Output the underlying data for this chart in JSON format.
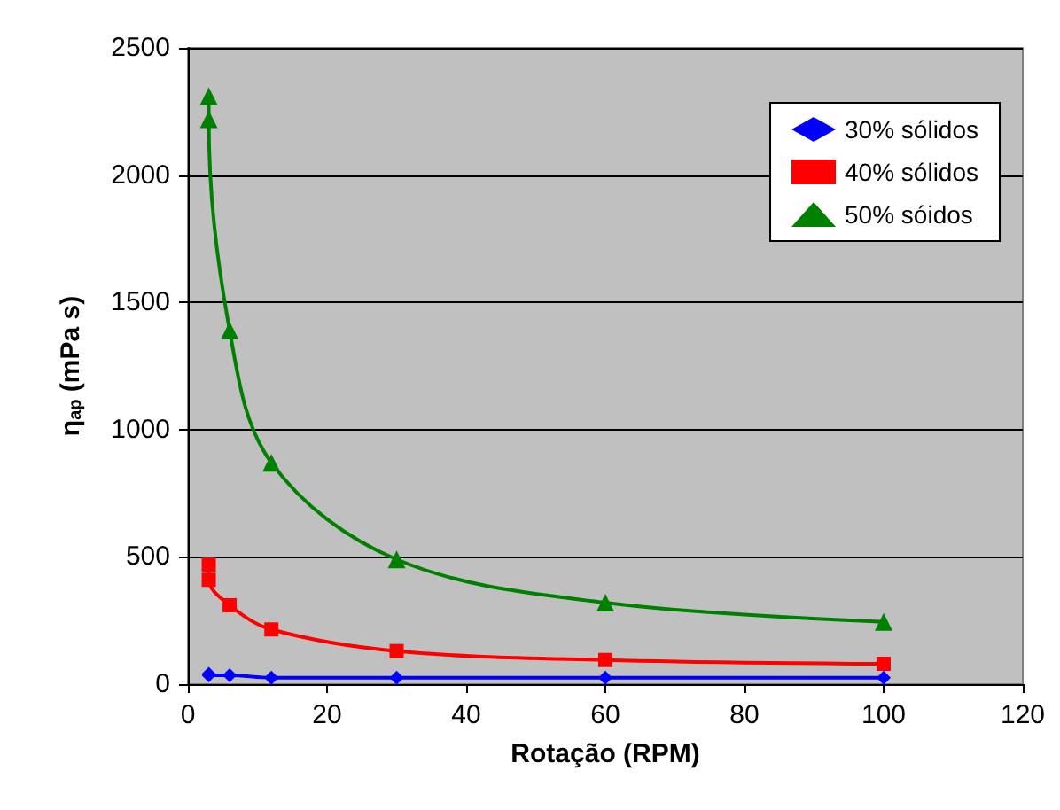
{
  "chart_data": {
    "type": "line",
    "xlabel": "Rotação (RPM)",
    "ylabel": "η$_{ap}$ (mPa s)",
    "x": [
      3,
      3,
      6,
      12,
      30,
      60,
      100
    ],
    "series": [
      {
        "name": "30% sólidos",
        "color": "#0000ff",
        "marker": "diamond",
        "values": [
          40,
          35,
          35,
          25,
          25,
          25,
          25
        ]
      },
      {
        "name": "40% sólidos",
        "color": "#ff0000",
        "marker": "square",
        "values": [
          470,
          410,
          310,
          215,
          130,
          95,
          80
        ]
      },
      {
        "name": "50% sóidos",
        "color": "#008000",
        "marker": "triangle",
        "values": [
          2310,
          2220,
          1390,
          870,
          490,
          320,
          245
        ]
      }
    ],
    "xlim": [
      0,
      120
    ],
    "xticks": [
      0,
      20,
      40,
      60,
      80,
      100,
      120
    ],
    "ylim": [
      0,
      2500
    ],
    "yticks": [
      0,
      500,
      1000,
      1500,
      2000,
      2500
    ],
    "grid": "y",
    "legend": "top right",
    "line_style": "solid"
  }
}
